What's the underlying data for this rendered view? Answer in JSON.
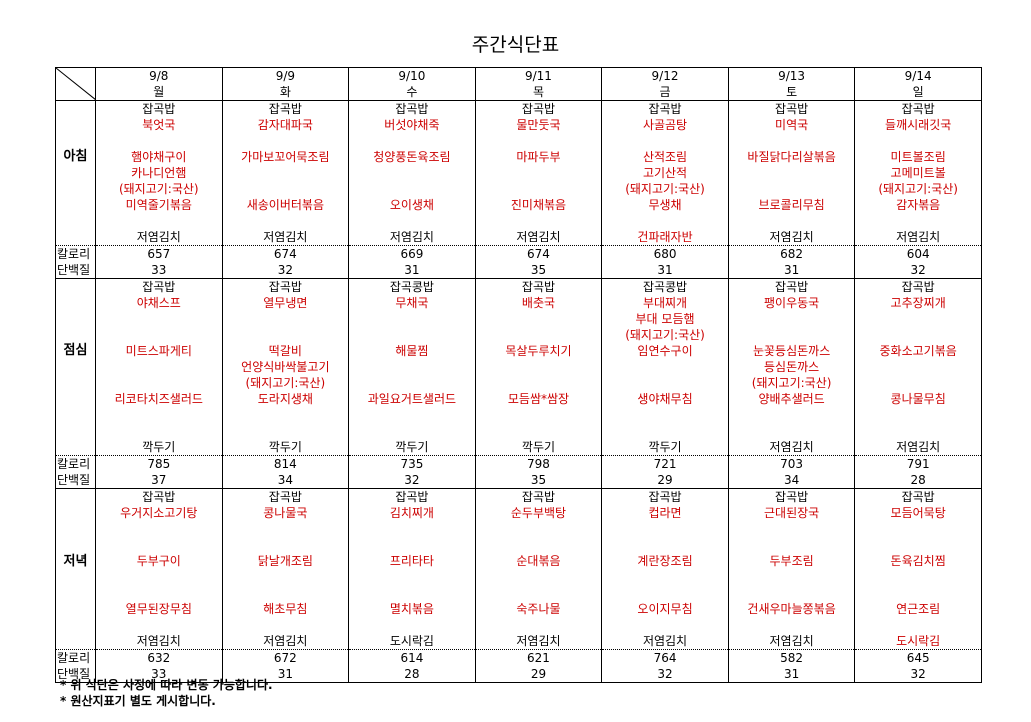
{
  "title": "주간식단표",
  "colors": {
    "red": "#cc0000",
    "black": "#000000"
  },
  "days": [
    {
      "date": "9/8",
      "weekday": "월"
    },
    {
      "date": "9/9",
      "weekday": "화"
    },
    {
      "date": "9/10",
      "weekday": "수"
    },
    {
      "date": "9/11",
      "weekday": "목"
    },
    {
      "date": "9/12",
      "weekday": "금"
    },
    {
      "date": "9/13",
      "weekday": "토"
    },
    {
      "date": "9/14",
      "weekday": "일"
    }
  ],
  "row_labels": {
    "calorie": "칼로리",
    "protein": "단백질"
  },
  "meals": [
    {
      "label": "아침",
      "cells": [
        {
          "lines": [
            "잡곡밥",
            "북엇국",
            "",
            "햄야채구이",
            "카나디언햄",
            "(돼지고기:국산)",
            "미역줄기볶음",
            "",
            "저염김치"
          ],
          "calorie": "657",
          "protein": "33"
        },
        {
          "lines": [
            "잡곡밥",
            "감자대파국",
            "",
            "가마보꼬어묵조림",
            "",
            "",
            "새송이버터볶음",
            "",
            "저염김치"
          ],
          "calorie": "674",
          "protein": "32"
        },
        {
          "lines": [
            "잡곡밥",
            "버섯야채죽",
            "",
            "청양풍돈육조림",
            "",
            "",
            "오이생채",
            "",
            "저염김치"
          ],
          "calorie": "669",
          "protein": "31"
        },
        {
          "lines": [
            "잡곡밥",
            "물만둣국",
            "",
            "마파두부",
            "",
            "",
            "진미채볶음",
            "",
            "저염김치"
          ],
          "calorie": "674",
          "protein": "35"
        },
        {
          "lines": [
            "잡곡밥",
            "사골곰탕",
            "",
            "산적조림",
            "고기산적",
            "(돼지고기:국산)",
            "무생채",
            "",
            "건파래자반"
          ],
          "last_red": true,
          "calorie": "680",
          "protein": "31"
        },
        {
          "lines": [
            "잡곡밥",
            "미역국",
            "",
            "바질닭다리살볶음",
            "",
            "",
            "브로콜리무침",
            "",
            "저염김치"
          ],
          "calorie": "682",
          "protein": "31"
        },
        {
          "lines": [
            "잡곡밥",
            "들깨시래깃국",
            "",
            "미트볼조림",
            "고메미트볼",
            "(돼지고기:국산)",
            "감자볶음",
            "",
            "저염김치"
          ],
          "calorie": "604",
          "protein": "32"
        }
      ]
    },
    {
      "label": "점심",
      "cells": [
        {
          "lines": [
            "잡곡밥",
            "야채스프",
            "",
            "",
            "미트스파게티",
            "",
            "",
            "리코타치즈샐러드",
            "",
            "",
            "깍두기"
          ],
          "calorie": "785",
          "protein": "37"
        },
        {
          "lines": [
            "잡곡밥",
            "열무냉면",
            "",
            "",
            "떡갈비",
            "언양식바싹불고기",
            "(돼지고기:국산)",
            "도라지생채",
            "",
            "",
            "깍두기"
          ],
          "calorie": "814",
          "protein": "34"
        },
        {
          "lines": [
            "잡곡콩밥",
            "무채국",
            "",
            "",
            "해물찜",
            "",
            "",
            "과일요거트샐러드",
            "",
            "",
            "깍두기"
          ],
          "calorie": "735",
          "protein": "32"
        },
        {
          "lines": [
            "잡곡밥",
            "배춧국",
            "",
            "",
            "목살두루치기",
            "",
            "",
            "모듬쌈*쌈장",
            "",
            "",
            "깍두기"
          ],
          "calorie": "798",
          "protein": "35"
        },
        {
          "lines": [
            "잡곡콩밥",
            "부대찌개",
            "부대 모듬햄",
            "(돼지고기:국산)",
            "임연수구이",
            "",
            "",
            "생야채무침",
            "",
            "",
            "깍두기"
          ],
          "calorie": "721",
          "protein": "29"
        },
        {
          "lines": [
            "잡곡밥",
            "팽이우동국",
            "",
            "",
            "눈꽃등심돈까스",
            "등심돈까스",
            "(돼지고기:국산)",
            "양배추샐러드",
            "",
            "",
            "저염김치"
          ],
          "calorie": "703",
          "protein": "34"
        },
        {
          "lines": [
            "잡곡밥",
            "고추장찌개",
            "",
            "",
            "중화소고기볶음",
            "",
            "",
            "콩나물무침",
            "",
            "",
            "저염김치"
          ],
          "calorie": "791",
          "protein": "28"
        }
      ]
    },
    {
      "label": "저녁",
      "cells": [
        {
          "lines": [
            "잡곡밥",
            "우거지소고기탕",
            "",
            "",
            "두부구이",
            "",
            "",
            "열무된장무침",
            "",
            "저염김치"
          ],
          "calorie": "632",
          "protein": "33"
        },
        {
          "lines": [
            "잡곡밥",
            "콩나물국",
            "",
            "",
            "닭날개조림",
            "",
            "",
            "해초무침",
            "",
            "저염김치"
          ],
          "calorie": "672",
          "protein": "31"
        },
        {
          "lines": [
            "잡곡밥",
            "김치찌개",
            "",
            "",
            "프리타타",
            "",
            "",
            "멸치볶음",
            "",
            "도시락김"
          ],
          "calorie": "614",
          "protein": "28"
        },
        {
          "lines": [
            "잡곡밥",
            "순두부백탕",
            "",
            "",
            "순대볶음",
            "",
            "",
            "숙주나물",
            "",
            "저염김치"
          ],
          "calorie": "621",
          "protein": "29"
        },
        {
          "lines": [
            "잡곡밥",
            "컵라면",
            "",
            "",
            "계란장조림",
            "",
            "",
            "오이지무침",
            "",
            "저염김치"
          ],
          "calorie": "764",
          "protein": "32"
        },
        {
          "lines": [
            "잡곡밥",
            "근대된장국",
            "",
            "",
            "두부조림",
            "",
            "",
            "건새우마늘쫑볶음",
            "",
            "저염김치"
          ],
          "calorie": "582",
          "protein": "31"
        },
        {
          "lines": [
            "잡곡밥",
            "모듬어묵탕",
            "",
            "",
            "돈육김치찜",
            "",
            "",
            "연근조림",
            "",
            "도시락김"
          ],
          "last_red": true,
          "calorie": "645",
          "protein": "32"
        }
      ]
    }
  ],
  "notes": [
    "* 위 식단은 사정에 따라 변동 가능합니다.",
    "* 원산지표기 별도 게시합니다."
  ]
}
